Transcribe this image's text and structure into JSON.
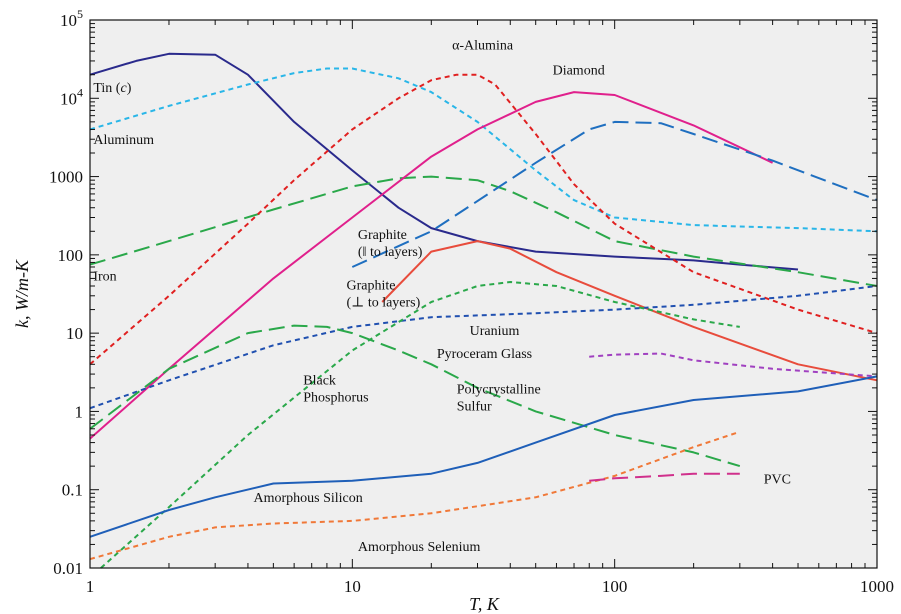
{
  "chart_data": {
    "type": "line",
    "xlabel": "T, K",
    "ylabel": "k, W/m-K",
    "xscale": "log",
    "yscale": "log",
    "xlim": [
      1,
      1000
    ],
    "ylim": [
      0.01,
      100000
    ],
    "grid": false,
    "background": "#efefef",
    "x_ticks": [
      "1",
      "10",
      "100",
      "1000"
    ],
    "y_ticks": [
      {
        "base": "0.01",
        "sup": ""
      },
      {
        "base": "0.1",
        "sup": ""
      },
      {
        "base": "1",
        "sup": ""
      },
      {
        "base": "10",
        "sup": ""
      },
      {
        "base": "100",
        "sup": ""
      },
      {
        "base": "1000",
        "sup": ""
      },
      {
        "base": "10",
        "sup": "4"
      },
      {
        "base": "10",
        "sup": "5"
      }
    ],
    "series": [
      {
        "name": "Tin (c)",
        "color": "#2a2a8c",
        "dash": "solid",
        "x": [
          1,
          1.5,
          2,
          3,
          4,
          6,
          10,
          15,
          20,
          30,
          50,
          100,
          200,
          300,
          500
        ],
        "y": [
          20000,
          30000,
          37000,
          36000,
          20000,
          5000,
          1200,
          400,
          220,
          150,
          110,
          95,
          85,
          75,
          65
        ]
      },
      {
        "name": "Aluminum",
        "color": "#29b6e8",
        "dash": "short",
        "x": [
          1,
          2,
          4,
          6,
          8,
          10,
          15,
          20,
          30,
          50,
          70,
          100,
          200,
          300,
          500,
          1000
        ],
        "y": [
          4000,
          8000,
          15000,
          21000,
          24000,
          24000,
          18000,
          12000,
          5000,
          1200,
          500,
          300,
          240,
          230,
          220,
          200
        ]
      },
      {
        "name": "Iron",
        "color": "#2aa84a",
        "dash": "long",
        "x": [
          1,
          2,
          5,
          10,
          15,
          20,
          30,
          40,
          60,
          100,
          200,
          500,
          1000
        ],
        "y": [
          75,
          150,
          380,
          750,
          950,
          1000,
          900,
          650,
          350,
          150,
          95,
          60,
          40
        ]
      },
      {
        "name": "α-Alumina",
        "color": "#e02020",
        "dash": "short",
        "x": [
          1,
          2,
          4,
          6,
          10,
          15,
          20,
          25,
          30,
          35,
          50,
          70,
          100,
          200,
          500,
          1000
        ],
        "y": [
          4,
          30,
          250,
          900,
          4000,
          10000,
          17000,
          20000,
          20000,
          15000,
          3500,
          800,
          250,
          60,
          20,
          10
        ]
      },
      {
        "name": "Diamond",
        "color": "#e0208c",
        "dash": "solid",
        "x": [
          1,
          2,
          5,
          10,
          20,
          30,
          50,
          70,
          100,
          200,
          400
        ],
        "y": [
          0.45,
          3.5,
          50,
          300,
          1800,
          4000,
          9000,
          12000,
          11000,
          4500,
          1500
        ]
      },
      {
        "name": "Graphite (‖ to layers)",
        "color": "#1f6fc0",
        "dash": "long",
        "x": [
          10,
          20,
          50,
          80,
          100,
          150,
          200,
          400,
          1000
        ],
        "y": [
          70,
          200,
          1500,
          4000,
          5000,
          4800,
          3500,
          1600,
          500
        ]
      },
      {
        "name": "Graphite (⊥ to layers)",
        "color": "#e84c3c",
        "dash": "solid",
        "x": [
          13,
          20,
          30,
          40,
          60,
          100,
          200,
          500,
          1000
        ],
        "y": [
          25,
          110,
          150,
          120,
          60,
          30,
          12,
          4,
          2.5
        ]
      },
      {
        "name": "Uranium",
        "color": "#2050b0",
        "dash": "short",
        "x": [
          1,
          2,
          5,
          10,
          20,
          50,
          100,
          200,
          500,
          1000
        ],
        "y": [
          1.1,
          2.5,
          7,
          12,
          16,
          18,
          20,
          23,
          30,
          40
        ]
      },
      {
        "name": "Pyroceram Glass",
        "color": "#a040c0",
        "dash": "short",
        "x": [
          80,
          100,
          150,
          200,
          400,
          1000
        ],
        "y": [
          5,
          5.3,
          5.5,
          4.5,
          3.5,
          2.8
        ]
      },
      {
        "name": "Polycrystalline Sulfur",
        "color": "#2aa84a",
        "dash": "long",
        "x": [
          1,
          2,
          4,
          6,
          8,
          10,
          15,
          20,
          30,
          50,
          100,
          200,
          300
        ],
        "y": [
          0.6,
          3.5,
          10,
          12.5,
          12,
          10,
          6,
          4,
          2,
          1,
          0.5,
          0.3,
          0.2
        ]
      },
      {
        "name": "Black Phosphorus",
        "color": "#2aa84a",
        "dash": "short",
        "x": [
          1.1,
          2,
          4,
          10,
          20,
          30,
          40,
          60,
          100,
          200,
          300
        ],
        "y": [
          0.01,
          0.06,
          0.5,
          6,
          25,
          40,
          45,
          40,
          25,
          15,
          12
        ]
      },
      {
        "name": "Amorphous Silicon",
        "color": "#1f5fb8",
        "dash": "solid",
        "x": [
          1,
          2,
          3,
          5,
          10,
          20,
          30,
          50,
          100,
          200,
          500,
          1000
        ],
        "y": [
          0.025,
          0.055,
          0.08,
          0.12,
          0.13,
          0.16,
          0.22,
          0.4,
          0.9,
          1.4,
          1.8,
          2.8
        ]
      },
      {
        "name": "Amorphous Selenium",
        "color": "#f07838",
        "dash": "short",
        "x": [
          1,
          2,
          3,
          5,
          10,
          20,
          50,
          100,
          200,
          300
        ],
        "y": [
          0.013,
          0.025,
          0.033,
          0.037,
          0.04,
          0.05,
          0.08,
          0.15,
          0.35,
          0.55
        ]
      },
      {
        "name": "PVC",
        "color": "#d0308c",
        "dash": "long",
        "x": [
          80,
          100,
          150,
          200,
          300
        ],
        "y": [
          0.13,
          0.14,
          0.15,
          0.16,
          0.16
        ]
      }
    ],
    "annotations": [
      {
        "lines": [
          "Tin (c)"
        ],
        "italic_in_parens": true,
        "x": 1.03,
        "y": 12000
      },
      {
        "lines": [
          "Aluminum"
        ],
        "x": 1.03,
        "y": 2600
      },
      {
        "lines": [
          "Iron"
        ],
        "x": 1.03,
        "y": 47
      },
      {
        "lines": [
          "α-Alumina"
        ],
        "x": 24,
        "y": 42000
      },
      {
        "lines": [
          "Diamond"
        ],
        "x": 58,
        "y": 20000
      },
      {
        "lines": [
          "Graphite",
          "(‖ to layers)"
        ],
        "x": 10.5,
        "y": 160
      },
      {
        "lines": [
          "Graphite",
          "(⊥ to layers)"
        ],
        "x": 9.5,
        "y": 36
      },
      {
        "lines": [
          "Uranium"
        ],
        "x": 28,
        "y": 9.5
      },
      {
        "lines": [
          "Pyroceram Glass"
        ],
        "x": 21,
        "y": 4.8
      },
      {
        "lines": [
          "Polycrystalline",
          "Sulfur"
        ],
        "x": 25,
        "y": 1.7
      },
      {
        "lines": [
          "Black",
          "Phosphorus"
        ],
        "x": 6.5,
        "y": 2.2
      },
      {
        "lines": [
          "Amorphous Silicon"
        ],
        "x": 4.2,
        "y": 0.07
      },
      {
        "lines": [
          "Amorphous Selenium"
        ],
        "x": 10.5,
        "y": 0.0165
      },
      {
        "lines": [
          "PVC"
        ],
        "x": 370,
        "y": 0.12
      }
    ]
  }
}
